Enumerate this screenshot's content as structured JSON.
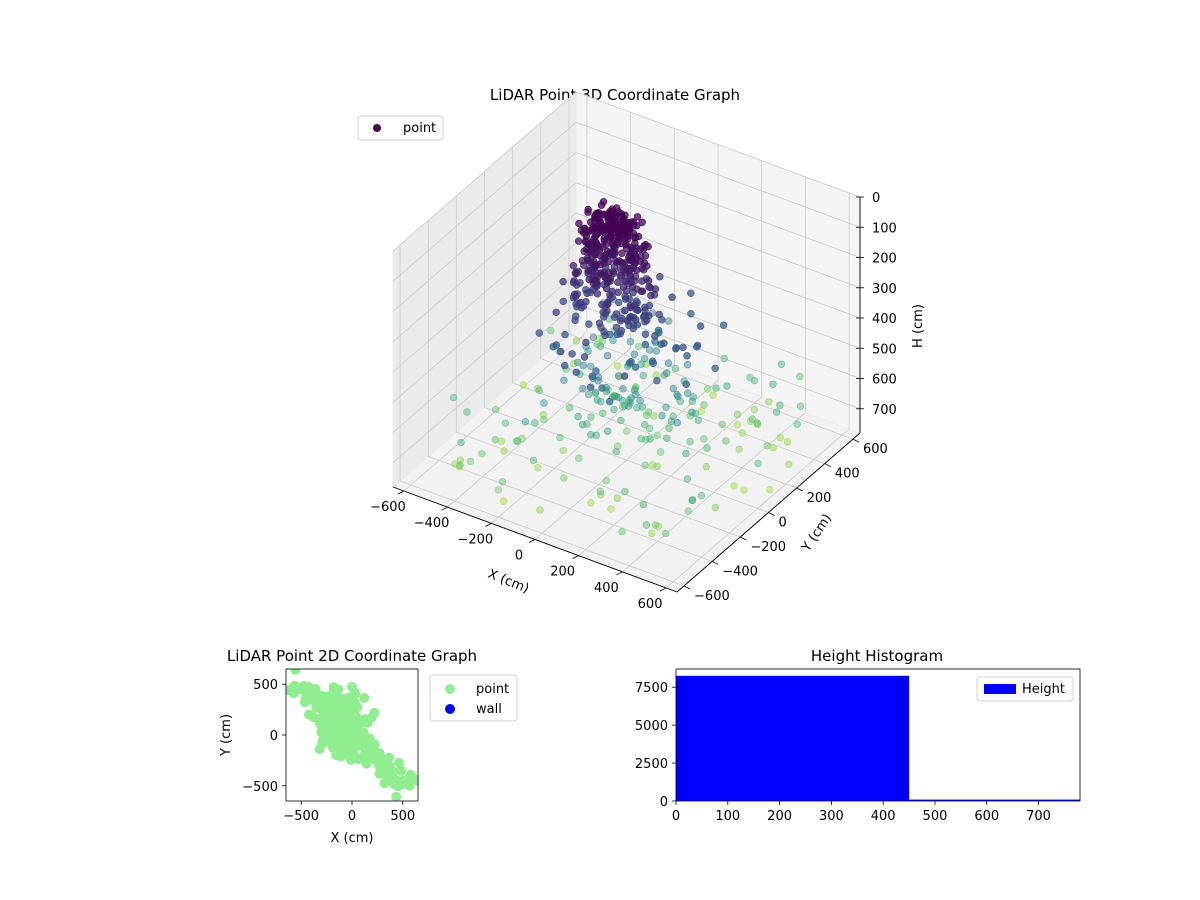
{
  "chart_data": [
    {
      "type": "scatter3d",
      "title": "LiDAR Point 3D Coordinate Graph",
      "xlabel": "X (cm)",
      "ylabel": "Y (cm)",
      "zlabel": "H (cm)",
      "xlim": [
        -650,
        650
      ],
      "ylim": [
        -650,
        650
      ],
      "zlim": [
        0,
        780
      ],
      "z_inverted": true,
      "xticks": [
        -600,
        -400,
        -200,
        0,
        200,
        400,
        600
      ],
      "yticks": [
        -600,
        -400,
        -200,
        0,
        200,
        400,
        600
      ],
      "zticks": [
        0,
        100,
        200,
        300,
        400,
        500,
        600,
        700
      ],
      "grid": true,
      "legend": {
        "position": "top-left",
        "entries": [
          {
            "label": "point",
            "color": "#440154"
          }
        ]
      },
      "colormap": "viridis",
      "colormap_stops": [
        "#440154",
        "#3b528b",
        "#21918c",
        "#5ec962",
        "#b5de2b"
      ],
      "series": [
        {
          "name": "point",
          "points": []
        }
      ],
      "marker_alpha": 0.6
    },
    {
      "type": "scatter",
      "title": "LiDAR Point 2D Coordinate Graph",
      "xlabel": "X (cm)",
      "ylabel": "Y (cm)",
      "xlim": [
        -650,
        650
      ],
      "ylim": [
        -650,
        650
      ],
      "xticks": [
        -500,
        0,
        500
      ],
      "yticks": [
        -500,
        0,
        500
      ],
      "legend": {
        "position": "outside-right",
        "entries": [
          {
            "label": "point",
            "color": "#90ee90"
          },
          {
            "label": "wall",
            "color": "#0000ff"
          }
        ]
      },
      "series": [
        {
          "name": "point",
          "color": "#90ee90",
          "points": []
        },
        {
          "name": "wall",
          "color": "#0000ff",
          "points": []
        }
      ]
    },
    {
      "type": "histogram",
      "title": "Height Histogram",
      "xlim": [
        0,
        780
      ],
      "ylim": [
        0,
        8700
      ],
      "xticks": [
        0,
        100,
        200,
        300,
        400,
        500,
        600,
        700
      ],
      "yticks": [
        0,
        2500,
        5000,
        7500
      ],
      "legend": {
        "position": "top-right",
        "entries": [
          {
            "label": "Height",
            "color": "#0000ff"
          }
        ]
      },
      "series": [
        {
          "name": "Height",
          "color": "#0000ff",
          "bins": [
            {
              "x0": 0,
              "x1": 450,
              "count": 8250
            },
            {
              "x0": 450,
              "x1": 780,
              "count": 90
            }
          ]
        }
      ]
    }
  ]
}
